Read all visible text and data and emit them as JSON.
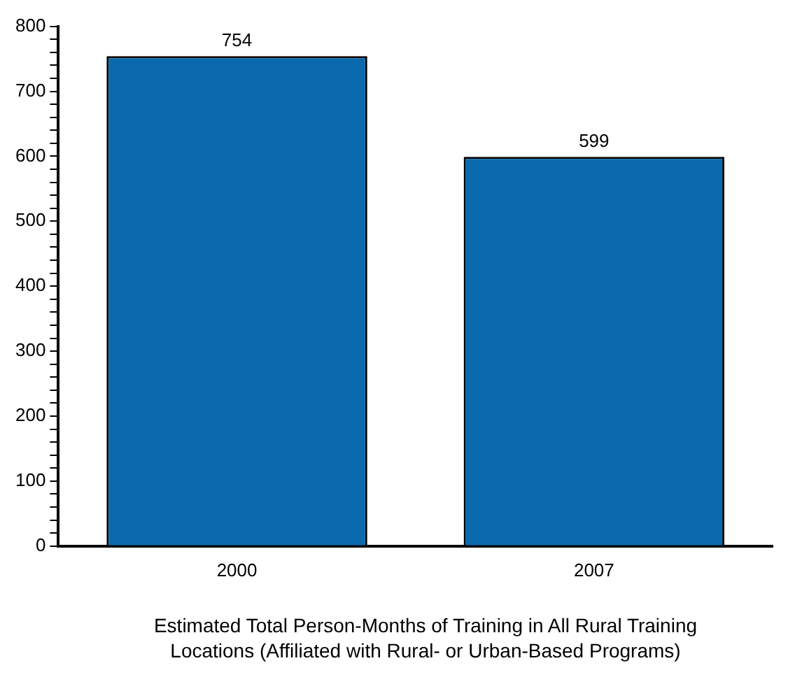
{
  "chart_data": {
    "type": "bar",
    "xlabel": "Estimated Total Person-Months of Training in All Rural Training Locations (Affiliated with Rural- or Urban-Based Programs)",
    "categories": [
      "2000",
      "2007"
    ],
    "values": [
      754,
      599
    ],
    "color": "#0a6aad",
    "data_labels": true,
    "grid": false,
    "ylim": [
      0,
      800
    ],
    "yticks": [
      0,
      {
        "value": 20,
        "label": null
      },
      {
        "value": 40,
        "label": null
      },
      {
        "value": 60,
        "label": null
      },
      {
        "value": 80,
        "label": null
      },
      100,
      {
        "value": 120,
        "label": null
      },
      {
        "value": 140,
        "label": null
      },
      {
        "value": 160,
        "label": null
      },
      {
        "value": 180,
        "label": null
      },
      200,
      {
        "value": 220,
        "label": null
      },
      {
        "value": 240,
        "label": null
      },
      {
        "value": 260,
        "label": null
      },
      {
        "value": 280,
        "label": null
      },
      300,
      {
        "value": 320,
        "label": null
      },
      {
        "value": 340,
        "label": null
      },
      {
        "value": 360,
        "label": null
      },
      {
        "value": 380,
        "label": null
      },
      400,
      {
        "value": 420,
        "label": null
      },
      {
        "value": 440,
        "label": null
      },
      {
        "value": 460,
        "label": null
      },
      {
        "value": 480,
        "label": null
      },
      500,
      {
        "value": 520,
        "label": null
      },
      {
        "value": 540,
        "label": null
      },
      {
        "value": 560,
        "label": null
      },
      {
        "value": 580,
        "label": null
      },
      600,
      {
        "value": 620,
        "label": null
      },
      {
        "value": 640,
        "label": null
      },
      {
        "value": 660,
        "label": null
      },
      {
        "value": 680,
        "label": null
      },
      700,
      {
        "value": 720,
        "label": null
      },
      {
        "value": 740,
        "label": null
      },
      {
        "value": 760,
        "label": null
      },
      {
        "value": 780,
        "label": null
      },
      800
    ]
  }
}
